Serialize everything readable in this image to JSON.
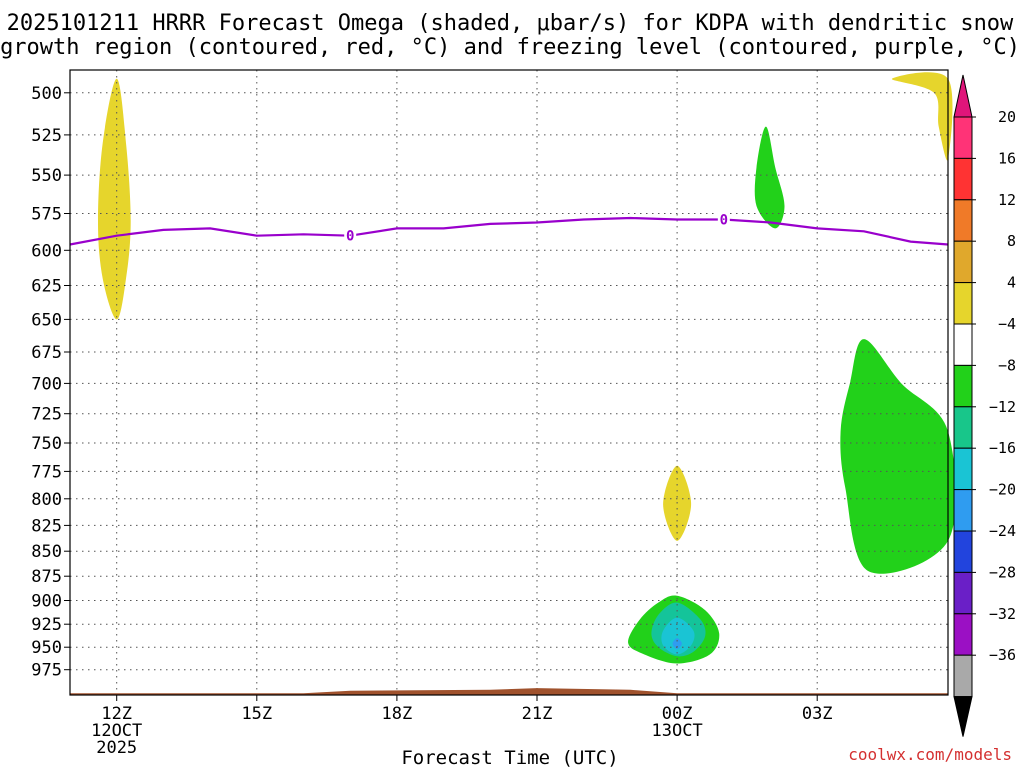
{
  "colors": {
    "freezing": "#9900cc",
    "yellow": "#e6d52c",
    "green": "#22d11a",
    "teal": "#14c49a",
    "cyan": "#1ac4d4",
    "blue": "#2f9cf0",
    "terrain": "#a0522d",
    "credit": "#d43030"
  },
  "chart_data": {
    "type": "time-height",
    "title_lines": [
      "2025101211 HRRR Forecast Omega (shaded, μbar/s) for KDPA with dendritic snow",
      "growth region (contoured, red, °C) and freezing level (contoured, purple, °C)"
    ],
    "xlabel": "Forecast Time (UTC)",
    "credit": "coolwx.com/models",
    "x_range_hours": [
      11,
      29.8
    ],
    "x_ticks": [
      {
        "hour": 12,
        "labels": [
          "12Z",
          "12OCT",
          "2025"
        ]
      },
      {
        "hour": 15,
        "labels": [
          "15Z"
        ]
      },
      {
        "hour": 18,
        "labels": [
          "18Z"
        ]
      },
      {
        "hour": 21,
        "labels": [
          "21Z"
        ]
      },
      {
        "hour": 24,
        "labels": [
          "00Z",
          "13OCT"
        ]
      },
      {
        "hour": 27,
        "labels": [
          "03Z"
        ]
      }
    ],
    "y_label_pressures": [
      500,
      525,
      550,
      575,
      600,
      625,
      650,
      675,
      700,
      725,
      750,
      775,
      800,
      825,
      850,
      875,
      900,
      925,
      950,
      975
    ],
    "colorbar_labels": [
      "20",
      "16",
      "12",
      "8",
      "4",
      "−4",
      "−8",
      "−12",
      "−16",
      "−20",
      "−24",
      "−28",
      "−32",
      "−36"
    ],
    "colorbar_colors": [
      "#ff3377",
      "#ff3333",
      "#f07a28",
      "#e0a82c",
      "#e6d52c",
      "#ffffff",
      "#22d11a",
      "#18c68a",
      "#1ac4d4",
      "#2f9cf0",
      "#2244dd",
      "#6a1fc7",
      "#9b10c4",
      "#a9a9a9"
    ],
    "colorbar_top_arrow": "#e0157a",
    "colorbar_bottom_arrow": "#000000",
    "freezing_level": {
      "label": "0",
      "label_hours": [
        17,
        25
      ],
      "points": [
        [
          11,
          596
        ],
        [
          12,
          590
        ],
        [
          13,
          586
        ],
        [
          14,
          585
        ],
        [
          15,
          590
        ],
        [
          16,
          589
        ],
        [
          17,
          590
        ],
        [
          18,
          585
        ],
        [
          19,
          585
        ],
        [
          20,
          582
        ],
        [
          21,
          581
        ],
        [
          22,
          579
        ],
        [
          23,
          578
        ],
        [
          24,
          579
        ],
        [
          25,
          579
        ],
        [
          26,
          581
        ],
        [
          27,
          585
        ],
        [
          28,
          587
        ],
        [
          29,
          594
        ],
        [
          29.8,
          596
        ]
      ]
    },
    "omega_regions": [
      {
        "level": "4 to 8",
        "color": "yellow",
        "points": [
          [
            12,
            492
          ],
          [
            12.2,
            530
          ],
          [
            12.3,
            580
          ],
          [
            12.2,
            620
          ],
          [
            12,
            650
          ],
          [
            11.7,
            620
          ],
          [
            11.6,
            580
          ],
          [
            11.7,
            530
          ]
        ]
      },
      {
        "level": "4 to 8",
        "color": "yellow",
        "points": [
          [
            24,
            770
          ],
          [
            24.3,
            805
          ],
          [
            24,
            840
          ],
          [
            23.7,
            805
          ]
        ]
      },
      {
        "level": "4 to 8",
        "color": "yellow",
        "points": [
          [
            28.6,
            492
          ],
          [
            29.8,
            492
          ],
          [
            29.8,
            540
          ],
          [
            29.6,
            520
          ],
          [
            29.5,
            500
          ]
        ]
      },
      {
        "level": "-4 to -8",
        "color": "green",
        "points": [
          [
            25.9,
            520
          ],
          [
            26.1,
            545
          ],
          [
            26.3,
            570
          ],
          [
            26.1,
            585
          ],
          [
            25.7,
            570
          ],
          [
            25.7,
            545
          ]
        ]
      },
      {
        "level": "-4 to -8",
        "color": "green",
        "points": [
          [
            28.0,
            665
          ],
          [
            28.8,
            700
          ],
          [
            29.8,
            740
          ],
          [
            29.8,
            840
          ],
          [
            28.1,
            870
          ],
          [
            27.6,
            790
          ],
          [
            27.5,
            740
          ],
          [
            27.7,
            700
          ]
        ]
      },
      {
        "level": "-4 to -8",
        "color": "green",
        "points": [
          [
            24,
            895
          ],
          [
            24.6,
            910
          ],
          [
            24.9,
            935
          ],
          [
            24.7,
            958
          ],
          [
            24,
            968
          ],
          [
            23.3,
            958
          ],
          [
            22.95,
            945
          ],
          [
            23.2,
            920
          ],
          [
            23.6,
            902
          ]
        ]
      },
      {
        "level": "-8 to -12",
        "color": "teal",
        "points": [
          [
            24,
            902
          ],
          [
            24.5,
            920
          ],
          [
            24.6,
            938
          ],
          [
            24.35,
            955
          ],
          [
            24,
            960
          ],
          [
            23.6,
            950
          ],
          [
            23.45,
            935
          ],
          [
            23.6,
            915
          ]
        ]
      },
      {
        "level": "-12 to -16",
        "color": "cyan",
        "points": [
          [
            24,
            918
          ],
          [
            24.35,
            932
          ],
          [
            24.3,
            948
          ],
          [
            24,
            958
          ],
          [
            23.7,
            948
          ],
          [
            23.7,
            932
          ]
        ]
      },
      {
        "level": "-16 to -20",
        "color": "blue",
        "points": [
          [
            24,
            940
          ],
          [
            24.1,
            946
          ],
          [
            24,
            952
          ],
          [
            23.9,
            946
          ]
        ]
      }
    ],
    "terrain": {
      "color": "terrain",
      "points": [
        [
          11,
          1002
        ],
        [
          16,
          1002
        ],
        [
          17,
          999
        ],
        [
          20,
          998
        ],
        [
          21,
          996
        ],
        [
          23,
          998
        ],
        [
          24,
          1002
        ],
        [
          29.8,
          1002
        ]
      ]
    }
  }
}
